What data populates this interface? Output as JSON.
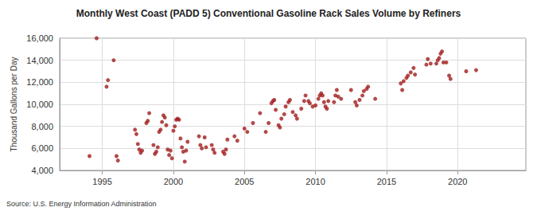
{
  "chart_data": {
    "type": "scatter",
    "title": "Monthly West Coast (PADD 5) Conventional Gasoline Rack Sales Volume by Refiners",
    "y_label": "Thousand Gallons per Day",
    "source": "Source: U.S. Energy Information Administration",
    "color": "#a01c1c",
    "marker": "circle",
    "grid": true,
    "xlim": [
      1992,
      2024.8
    ],
    "xticks": [
      1995,
      2000,
      2005,
      2010,
      2015,
      2020
    ],
    "ylim": [
      4000,
      16000
    ],
    "yticks": [
      {
        "value": 4000,
        "label": "4,000"
      },
      {
        "value": 6000,
        "label": "6,000"
      },
      {
        "value": 8000,
        "label": "8,000"
      },
      {
        "value": 10000,
        "label": "10,000"
      },
      {
        "value": 12000,
        "label": "12,000"
      },
      {
        "value": 14000,
        "label": "14,000"
      },
      {
        "value": 16000,
        "label": "16,000"
      }
    ],
    "x": [
      1994.1,
      1994.6,
      1995.3,
      1995.4,
      1995.8,
      1996.0,
      1996.1,
      1997.3,
      1997.4,
      1997.5,
      1997.6,
      1997.7,
      1997.8,
      1998.1,
      1998.2,
      1998.3,
      1998.6,
      1998.7,
      1998.8,
      1998.9,
      1999.0,
      1999.1,
      1999.2,
      1999.3,
      1999.4,
      1999.5,
      1999.6,
      1999.7,
      1999.8,
      1999.9,
      2000.0,
      2000.1,
      2000.2,
      2000.3,
      2000.4,
      2000.5,
      2000.6,
      2000.7,
      2000.8,
      2000.9,
      2001.0,
      2001.8,
      2001.9,
      2002.0,
      2002.2,
      2002.3,
      2002.7,
      2002.8,
      2002.9,
      2003.5,
      2003.6,
      2003.7,
      2003.8,
      2004.3,
      2004.5,
      2005.0,
      2005.2,
      2005.6,
      2006.1,
      2006.5,
      2006.7,
      2006.9,
      2007.0,
      2007.1,
      2007.2,
      2007.4,
      2007.5,
      2007.6,
      2007.8,
      2007.9,
      2008.1,
      2008.2,
      2008.4,
      2008.6,
      2008.7,
      2009.0,
      2009.2,
      2009.3,
      2009.5,
      2009.6,
      2009.8,
      2010.0,
      2010.2,
      2010.3,
      2010.4,
      2010.5,
      2010.6,
      2010.7,
      2010.8,
      2010.9,
      2011.3,
      2011.4,
      2011.5,
      2011.6,
      2011.8,
      2012.5,
      2012.8,
      2012.9,
      2013.1,
      2013.3,
      2013.4,
      2013.6,
      2013.7,
      2014.2,
      2016.0,
      2016.1,
      2016.2,
      2016.4,
      2016.5,
      2016.7,
      2016.9,
      2017.0,
      2017.8,
      2017.9,
      2018.1,
      2018.5,
      2018.6,
      2018.7,
      2018.8,
      2018.9,
      2019.0,
      2019.2,
      2019.4,
      2019.5,
      2020.6,
      2021.3
    ],
    "values": [
      5300,
      16000,
      11600,
      12200,
      14000,
      5300,
      4900,
      7700,
      7300,
      6400,
      5900,
      5600,
      5800,
      8300,
      8500,
      9200,
      6300,
      5500,
      5700,
      6100,
      7500,
      7700,
      8400,
      9000,
      8800,
      8100,
      5900,
      5400,
      5800,
      5100,
      7600,
      8000,
      8600,
      8700,
      8600,
      6900,
      6100,
      5700,
      4800,
      5800,
      6600,
      7100,
      6300,
      6000,
      7000,
      6100,
      6300,
      5900,
      5600,
      5700,
      5500,
      5900,
      6800,
      7100,
      6700,
      7800,
      7500,
      8300,
      9200,
      7500,
      8300,
      10100,
      10300,
      10400,
      9500,
      8100,
      7900,
      8700,
      9100,
      9800,
      10200,
      10400,
      9300,
      9000,
      8700,
      9600,
      10300,
      10800,
      10300,
      10100,
      9800,
      9900,
      10500,
      10800,
      11000,
      10800,
      10200,
      9800,
      9600,
      10300,
      10200,
      10800,
      11300,
      10700,
      10500,
      11300,
      10200,
      9900,
      10400,
      10800,
      11200,
      11400,
      11600,
      10500,
      11900,
      11300,
      12100,
      12400,
      12600,
      12900,
      13300,
      12700,
      13600,
      14100,
      13700,
      13700,
      14000,
      14200,
      14600,
      14800,
      13800,
      13800,
      12600,
      12300,
      13000,
      13100
    ]
  }
}
